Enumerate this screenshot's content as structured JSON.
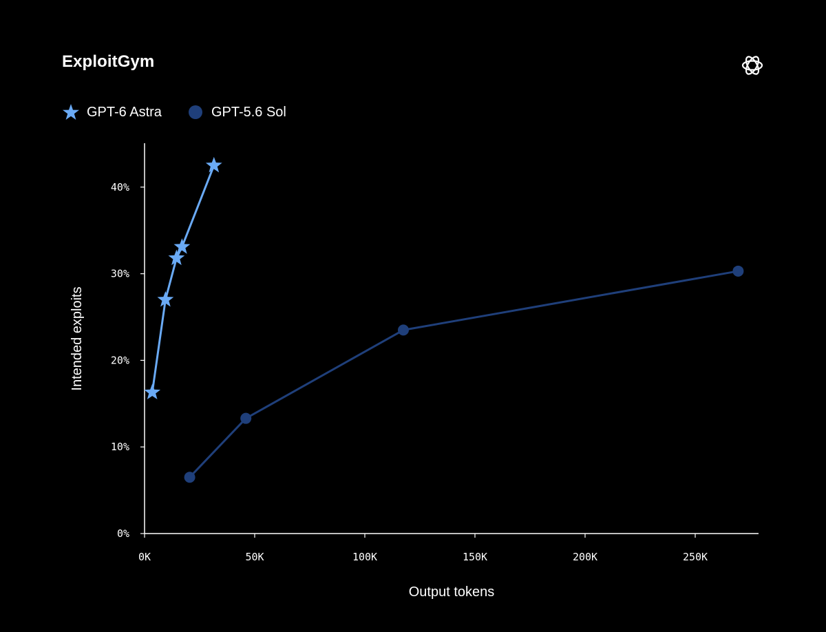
{
  "header": {
    "title": "ExploitGym",
    "logo_icon": "openai-logo-icon"
  },
  "legend": [
    {
      "label": "GPT-6 Astra",
      "marker": "star",
      "color": "#6aaaf5"
    },
    {
      "label": "GPT-5.6 Sol",
      "marker": "circle",
      "color": "#1f3f7a"
    }
  ],
  "chart_data": {
    "type": "line",
    "title": "ExploitGym",
    "xlabel": "Output tokens",
    "ylabel": "Intended exploits",
    "xlim": [
      0,
      280000
    ],
    "ylim": [
      0,
      0.45
    ],
    "x_ticks": [
      0,
      50000,
      100000,
      150000,
      200000,
      250000
    ],
    "x_tick_labels": [
      "0K",
      "50K",
      "100K",
      "150K",
      "200K",
      "250K"
    ],
    "y_ticks": [
      0,
      0.1,
      0.2,
      0.3,
      0.4
    ],
    "y_tick_labels": [
      "0%",
      "10%",
      "20%",
      "30%",
      "40%"
    ],
    "grid": false,
    "legend_position": "top-left",
    "series": [
      {
        "name": "GPT-6 Astra",
        "marker": "star",
        "color": "#6aaaf5",
        "x": [
          3500,
          9500,
          14500,
          17000,
          31500
        ],
        "y": [
          0.163,
          0.27,
          0.318,
          0.331,
          0.425
        ]
      },
      {
        "name": "GPT-5.6 Sol",
        "marker": "circle",
        "color": "#1f3f7a",
        "x": [
          20500,
          46000,
          117500,
          269500
        ],
        "y": [
          0.065,
          0.133,
          0.235,
          0.303
        ]
      }
    ]
  }
}
